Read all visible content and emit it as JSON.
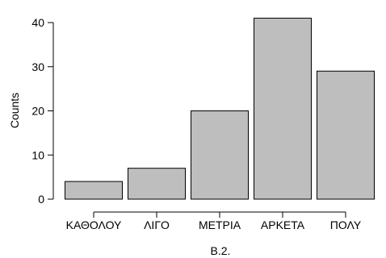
{
  "chart_data": {
    "type": "bar",
    "categories": [
      "ΚΑΘΟΛΟΥ",
      "ΛΙΓΟ",
      "ΜΕΤΡΙΑ",
      "ΑΡΚΕΤΑ",
      "ΠΟΛΥ"
    ],
    "values": [
      4,
      7,
      20,
      41,
      29
    ],
    "xlabel": "B.2.",
    "ylabel": "Counts",
    "ylim": [
      0,
      41
    ],
    "yticks": [
      0,
      10,
      20,
      30,
      40
    ],
    "grid": false,
    "bar_color": "#bebebe",
    "bar_border_color": "#000000"
  }
}
